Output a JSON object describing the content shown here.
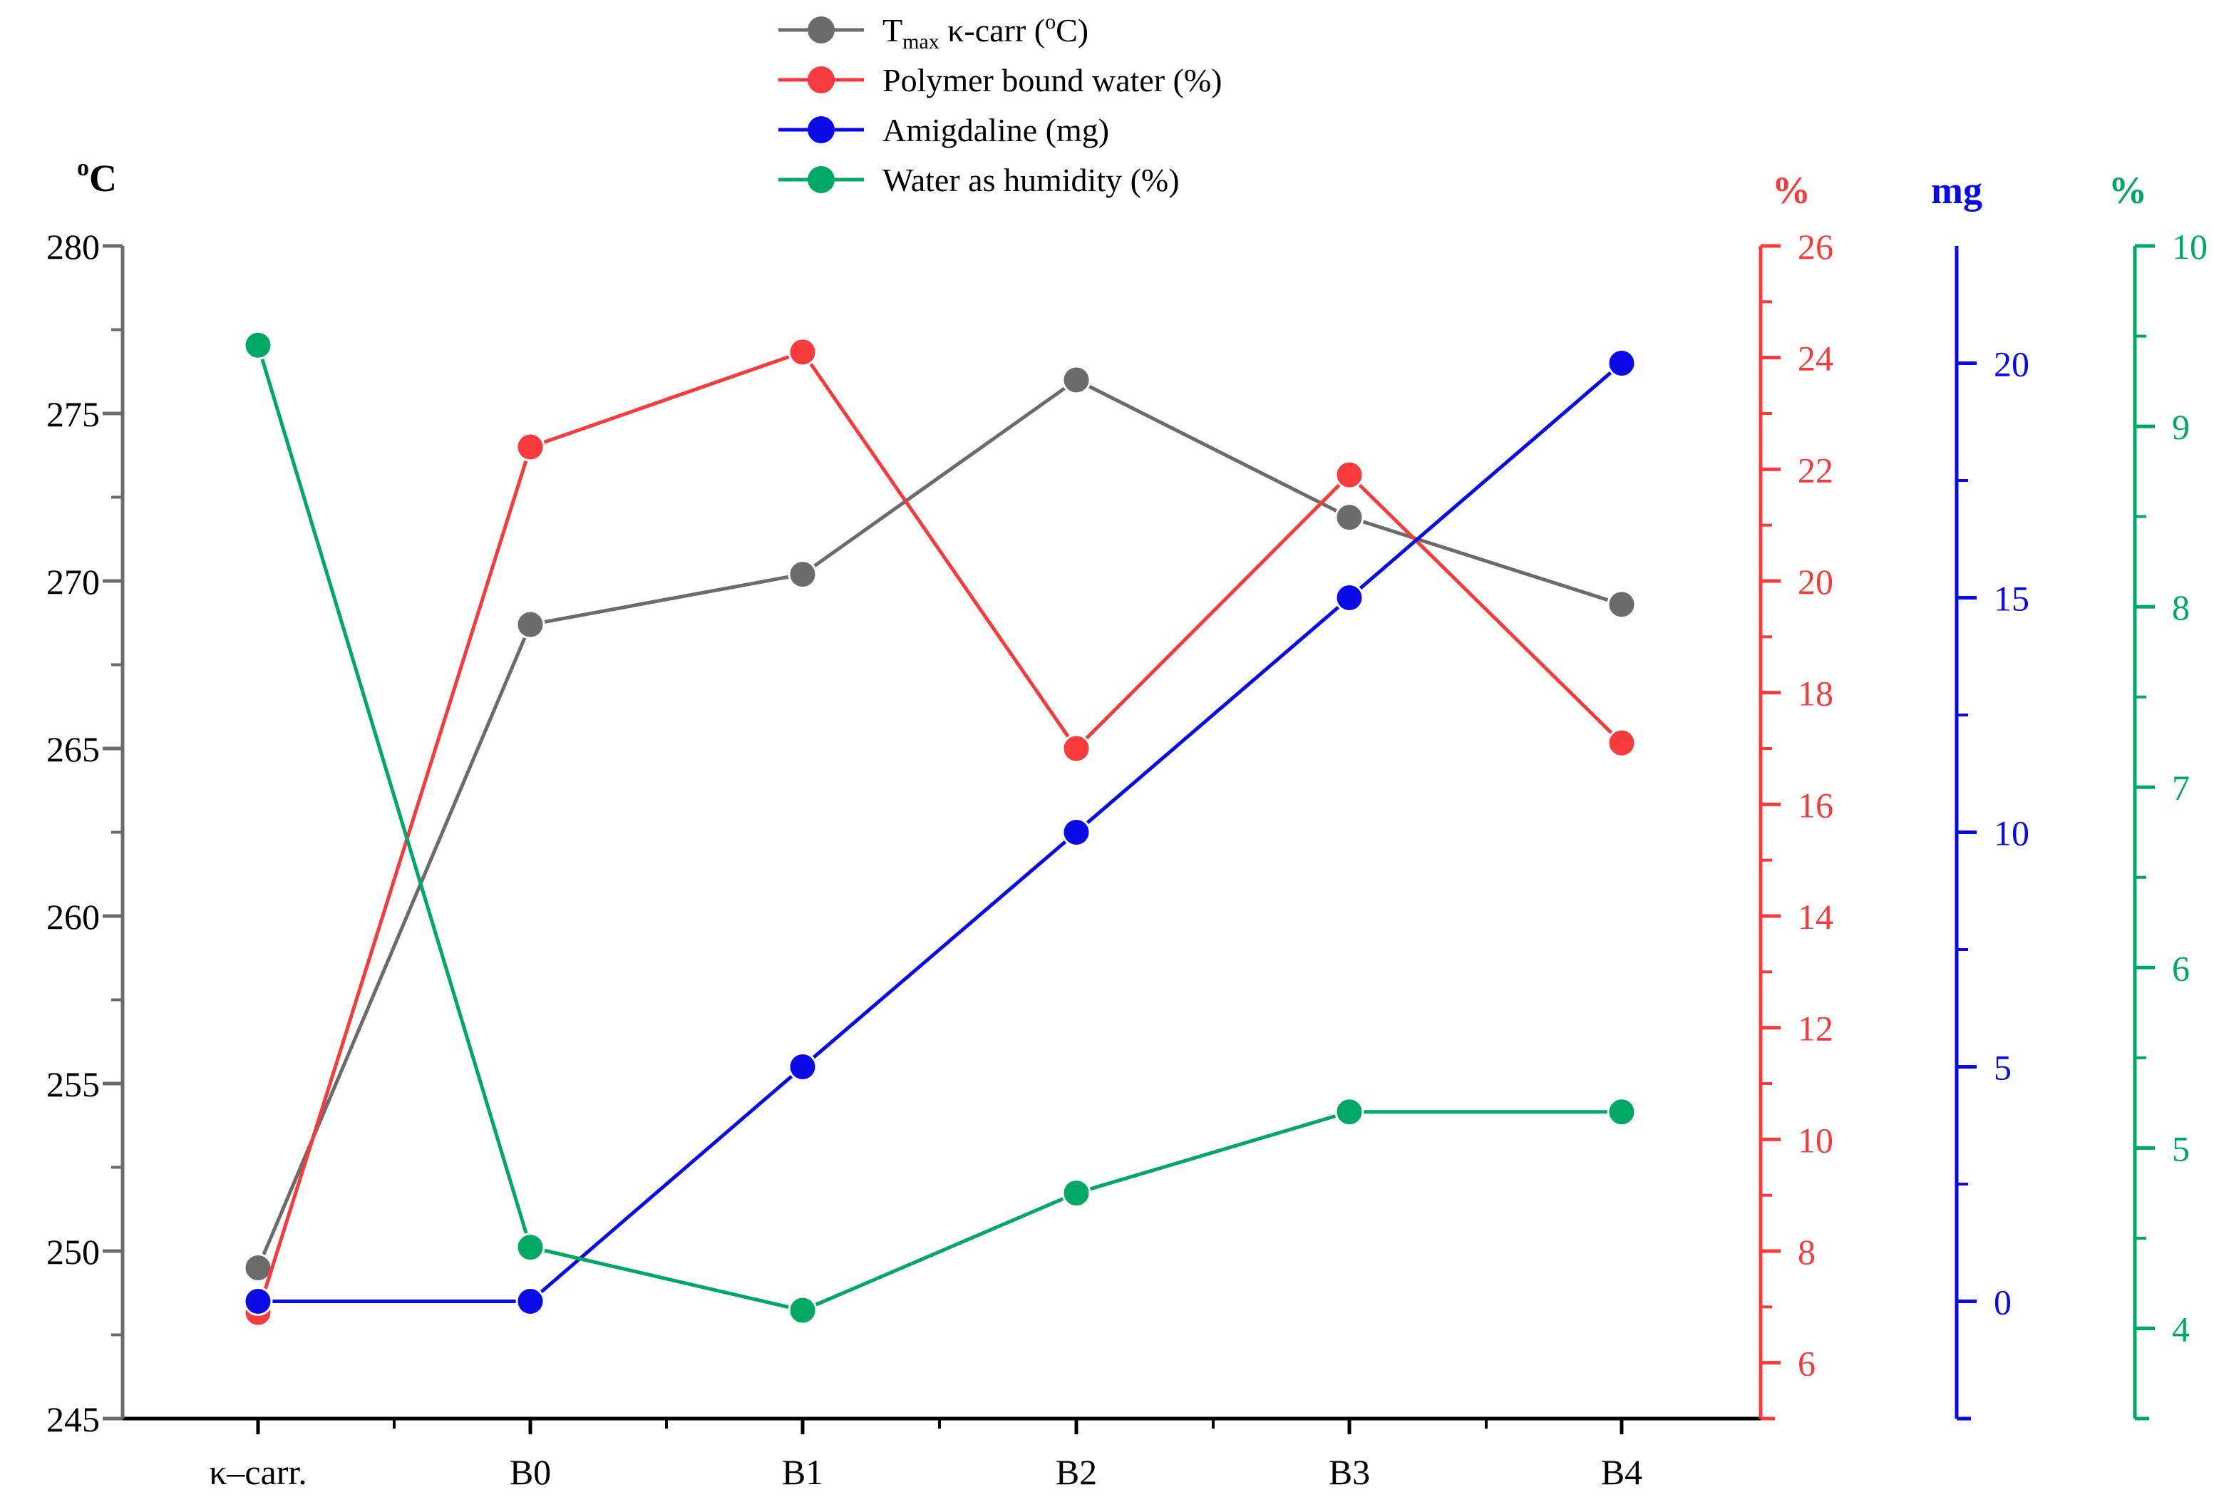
{
  "colors": {
    "tmax": "#6b6b6b",
    "bound_water": "#f53b3b",
    "amigdaline": "#0a0ae6",
    "humidity": "#00a865"
  },
  "chart_data": {
    "type": "line",
    "categories": [
      "κ–carr.",
      "B0",
      "B1",
      "B2",
      "B3",
      "B4"
    ],
    "axes": [
      {
        "id": "tmax",
        "title_main": "o",
        "title_suffix": "C",
        "position": "left",
        "ylim": [
          245,
          280
        ],
        "ticks": [
          245,
          250,
          255,
          260,
          265,
          270,
          275,
          280
        ],
        "color": "#6b6b6b"
      },
      {
        "id": "bound_water",
        "title": "%",
        "position": "right-1",
        "ylim": [
          5,
          26
        ],
        "ticks": [
          6,
          8,
          10,
          12,
          14,
          16,
          18,
          20,
          22,
          24,
          26
        ],
        "color": "#f53b3b"
      },
      {
        "id": "amigdaline",
        "title": "mg",
        "position": "right-2",
        "ylim": [
          -2.5,
          22.5
        ],
        "ticks": [
          0,
          5,
          10,
          15,
          20
        ],
        "color": "#0a0ae6"
      },
      {
        "id": "humidity",
        "title": "%",
        "position": "right-3",
        "ylim": [
          3.5,
          10
        ],
        "ticks": [
          4,
          5,
          6,
          7,
          8,
          9,
          10
        ],
        "color": "#00a865"
      }
    ],
    "series": [
      {
        "name": "Tmax κ-carr (oC)",
        "legend_main": "T",
        "legend_sub": "max",
        "legend_rest": " κ-carr (",
        "legend_sup": "o",
        "legend_end": "C)",
        "axis": "tmax",
        "color": "#6b6b6b",
        "values": [
          249.5,
          268.7,
          270.2,
          276.0,
          271.9,
          269.3
        ]
      },
      {
        "name": "Polymer bound water (%)",
        "legend_main": "Polymer bound water (%)",
        "axis": "bound_water",
        "color": "#f53b3b",
        "values": [
          6.9,
          22.4,
          24.1,
          17.0,
          21.9,
          17.1
        ]
      },
      {
        "name": "Amigdaline (mg)",
        "legend_main": "Amigdaline (mg)",
        "axis": "amigdaline",
        "color": "#0a0ae6",
        "values": [
          0,
          0,
          5.0,
          10.0,
          15.0,
          20.0
        ]
      },
      {
        "name": "Water as humidity (%)",
        "legend_main": "Water as humidity (%)",
        "axis": "humidity",
        "color": "#00a865",
        "values": [
          9.45,
          4.45,
          4.1,
          4.75,
          5.2,
          5.2
        ]
      }
    ]
  }
}
